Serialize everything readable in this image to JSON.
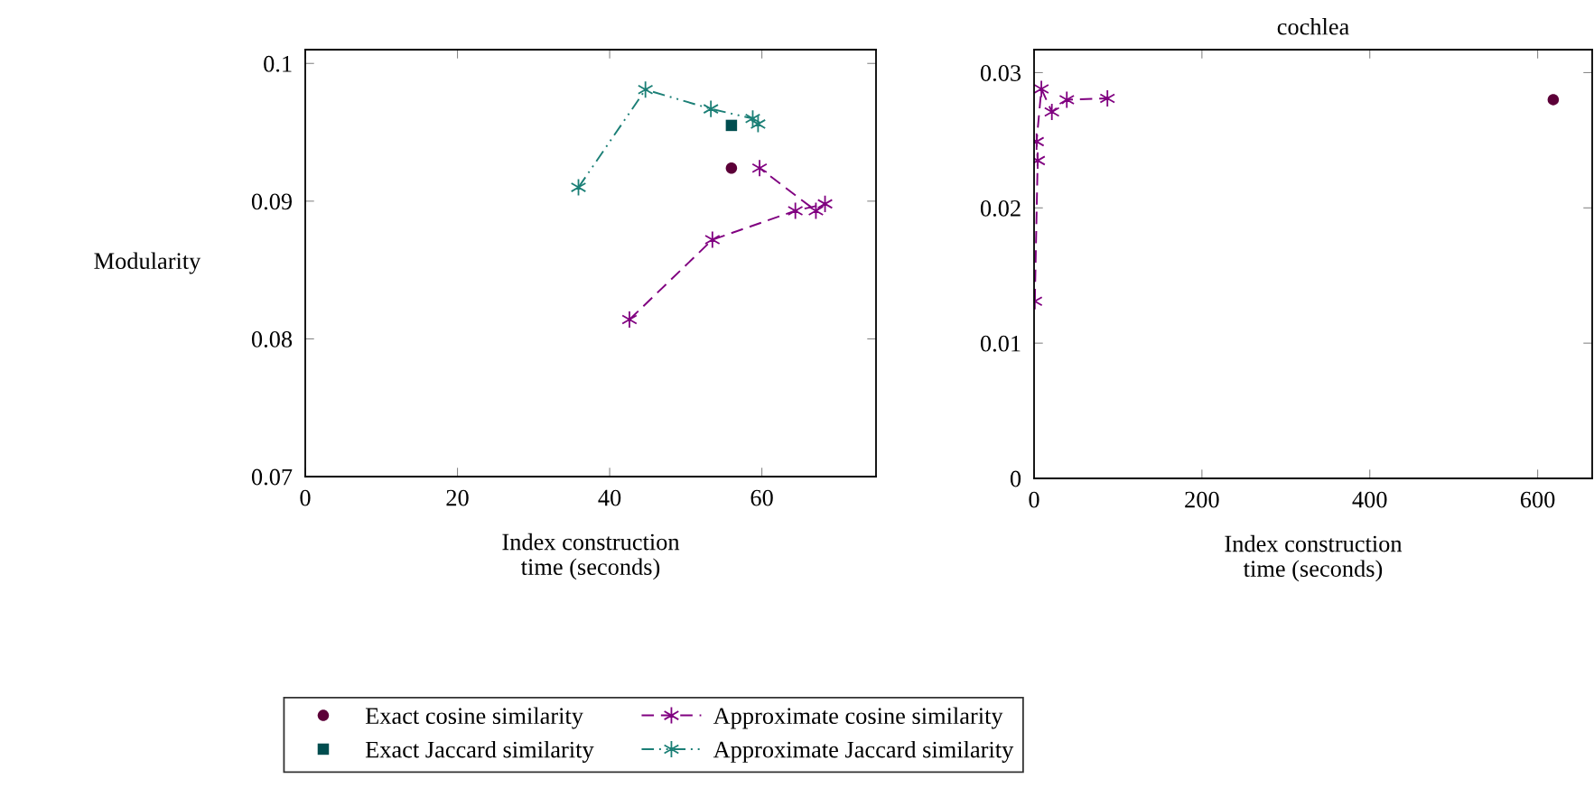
{
  "chart_data": [
    {
      "type": "line",
      "ylabel": "Modularity",
      "xlabel": "Index construction\ntime (seconds)",
      "xlim": [
        0,
        75
      ],
      "xticks": [
        0,
        20,
        40,
        60
      ],
      "ylim": [
        0.07,
        0.101
      ],
      "yticks": [
        0.07,
        0.08,
        0.09,
        0.1
      ],
      "grid": false,
      "legend": "bottom",
      "series": [
        {
          "name": "Exact cosine similarity",
          "type": "scatter",
          "marker": "circle",
          "color": "#5c0038",
          "x": [
            56.0
          ],
          "values": [
            0.0924
          ]
        },
        {
          "name": "Exact Jaccard similarity",
          "type": "scatter",
          "marker": "square",
          "color": "#004d4f",
          "x": [
            56.0
          ],
          "values": [
            0.0955
          ]
        },
        {
          "name": "Approximate cosine similarity",
          "marker": "cross",
          "line_style": "dashed",
          "color": "#800080",
          "x": [
            42.6,
            53.5,
            64.4,
            68.3,
            67.1,
            59.7
          ],
          "values": [
            0.0814,
            0.0872,
            0.0893,
            0.0898,
            0.0893,
            0.0924
          ]
        },
        {
          "name": "Approximate Jaccard similarity",
          "marker": "cross",
          "line_style": "dotted",
          "color": "#1b7f76",
          "x": [
            35.9,
            44.7,
            53.3,
            58.8,
            59.5
          ],
          "values": [
            0.091,
            0.0981,
            0.0967,
            0.096,
            0.0956
          ]
        }
      ]
    },
    {
      "type": "line",
      "title": "cochlea",
      "xlabel": "Index construction\ntime (seconds)",
      "xlim": [
        0,
        665
      ],
      "xticks": [
        0,
        200,
        400,
        600
      ],
      "ylim": [
        0,
        0.0317
      ],
      "yticks": [
        0,
        0.01,
        0.02,
        0.03
      ],
      "grid": false,
      "legend": "bottom",
      "series": [
        {
          "name": "Exact cosine similarity",
          "type": "scatter",
          "marker": "circle",
          "color": "#5c0038",
          "x": [
            618.6
          ],
          "values": [
            0.028
          ]
        },
        {
          "name": "Approximate cosine similarity",
          "marker": "cross",
          "line_style": "dashed",
          "color": "#800080",
          "x": [
            0.9,
            4.3,
            3.0,
            8.7,
            21.2,
            39.0,
            87.4
          ],
          "values": [
            0.0131,
            0.0235,
            0.0249,
            0.0288,
            0.0271,
            0.028,
            0.0281
          ]
        }
      ]
    }
  ]
}
